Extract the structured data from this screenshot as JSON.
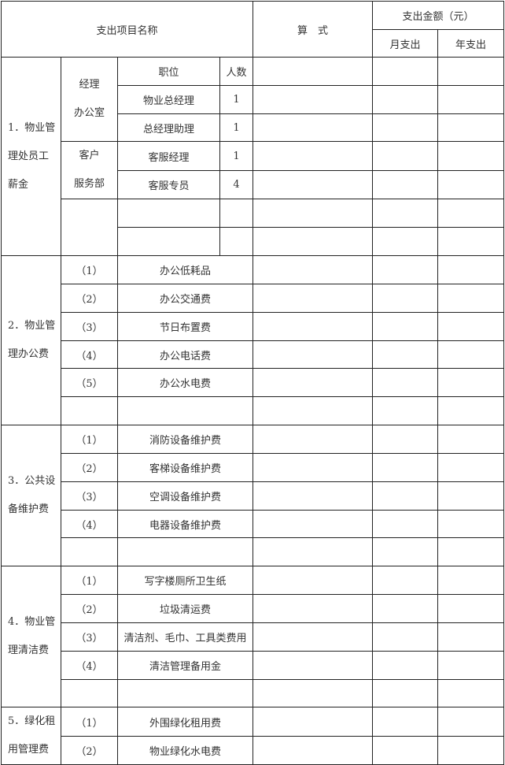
{
  "header": {
    "item_name": "支出项目名称",
    "formula": "算　式",
    "amount": "支出金额（元）",
    "monthly": "月支出",
    "yearly": "年支出"
  },
  "section1": {
    "title_lines": [
      "1．物业管",
      "理处员工",
      "薪金"
    ],
    "position_header": "职位",
    "count_header": "人数",
    "departments": [
      {
        "name_lines": [
          "经理",
          "办公室"
        ],
        "staff": [
          {
            "position": "物业总经理",
            "count": "1"
          },
          {
            "position": "总经理助理",
            "count": "1"
          }
        ]
      },
      {
        "name_lines": [
          "客户",
          "服务部"
        ],
        "staff": [
          {
            "position": "客服经理",
            "count": "1"
          },
          {
            "position": "客服专员",
            "count": "4"
          }
        ]
      }
    ]
  },
  "sections": [
    {
      "title_lines": [
        "2．物业管",
        "理办公费"
      ],
      "items": [
        {
          "no": "（1）",
          "name": "办公低耗品"
        },
        {
          "no": "（2）",
          "name": "办公交通费"
        },
        {
          "no": "（3）",
          "name": "节日布置费"
        },
        {
          "no": "（4）",
          "name": "办公电话费"
        },
        {
          "no": "（5）",
          "name": "办公水电费"
        }
      ],
      "blank_rows": 1
    },
    {
      "title_lines": [
        "3．公共设",
        "备维护费"
      ],
      "items": [
        {
          "no": "（1）",
          "name": "消防设备维护费"
        },
        {
          "no": "（2）",
          "name": "客梯设备维护费"
        },
        {
          "no": "（3）",
          "name": "空调设备维护费"
        },
        {
          "no": "（4）",
          "name": "电器设备维护费"
        }
      ],
      "blank_rows": 1
    },
    {
      "title_lines": [
        "4．物业管",
        "理清洁费"
      ],
      "items": [
        {
          "no": "（1）",
          "name": "写字楼厕所卫生纸"
        },
        {
          "no": "（2）",
          "name": "垃圾清运费"
        },
        {
          "no": "（3）",
          "name": "清洁剂、毛巾、工具类费用"
        },
        {
          "no": "（4）",
          "name": "清洁管理备用金"
        }
      ],
      "blank_rows": 1
    },
    {
      "title_lines": [
        "5．绿化租",
        "用管理费"
      ],
      "items": [
        {
          "no": "（1）",
          "name": "外围绿化租用费"
        },
        {
          "no": "（2）",
          "name": "物业绿化水电费"
        }
      ],
      "blank_rows": 0
    }
  ]
}
